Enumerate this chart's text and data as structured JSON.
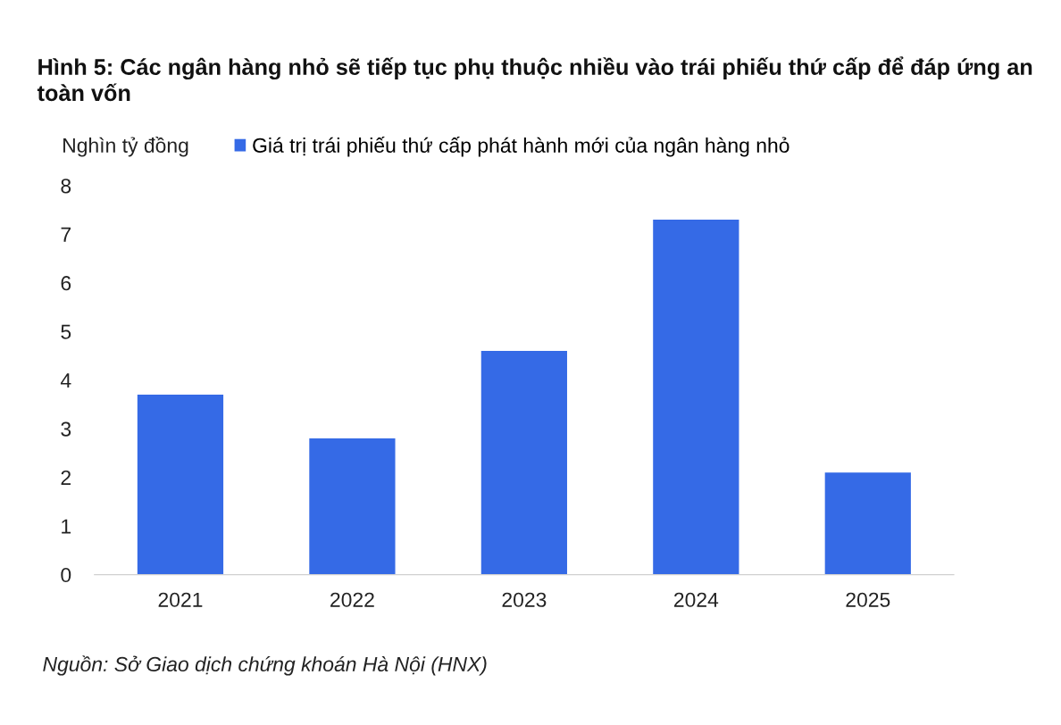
{
  "chart_data": {
    "type": "bar",
    "title": "Hình 5: Các ngân hàng nhỏ sẽ tiếp tục phụ thuộc nhiều vào trái phiếu thứ cấp để đáp ứng an toàn vốn",
    "ylabel": "Nghìn tỷ đồng",
    "categories": [
      "2021",
      "2022",
      "2023",
      "2024",
      "2025"
    ],
    "series": [
      {
        "name": "Giá trị trái phiếu thứ cấp phát hành mới của ngân hàng nhỏ",
        "color": "#356ae6",
        "values": [
          3.7,
          2.8,
          4.6,
          7.3,
          2.1
        ]
      }
    ],
    "ylim": [
      0,
      8
    ],
    "yticks": [
      0,
      1,
      2,
      3,
      4,
      5,
      6,
      7,
      8
    ],
    "grid": false,
    "legend": "top left",
    "annotations": [
      "Nguồn: Sở Giao dịch chứng khoán Hà Nội (HNX)"
    ]
  }
}
